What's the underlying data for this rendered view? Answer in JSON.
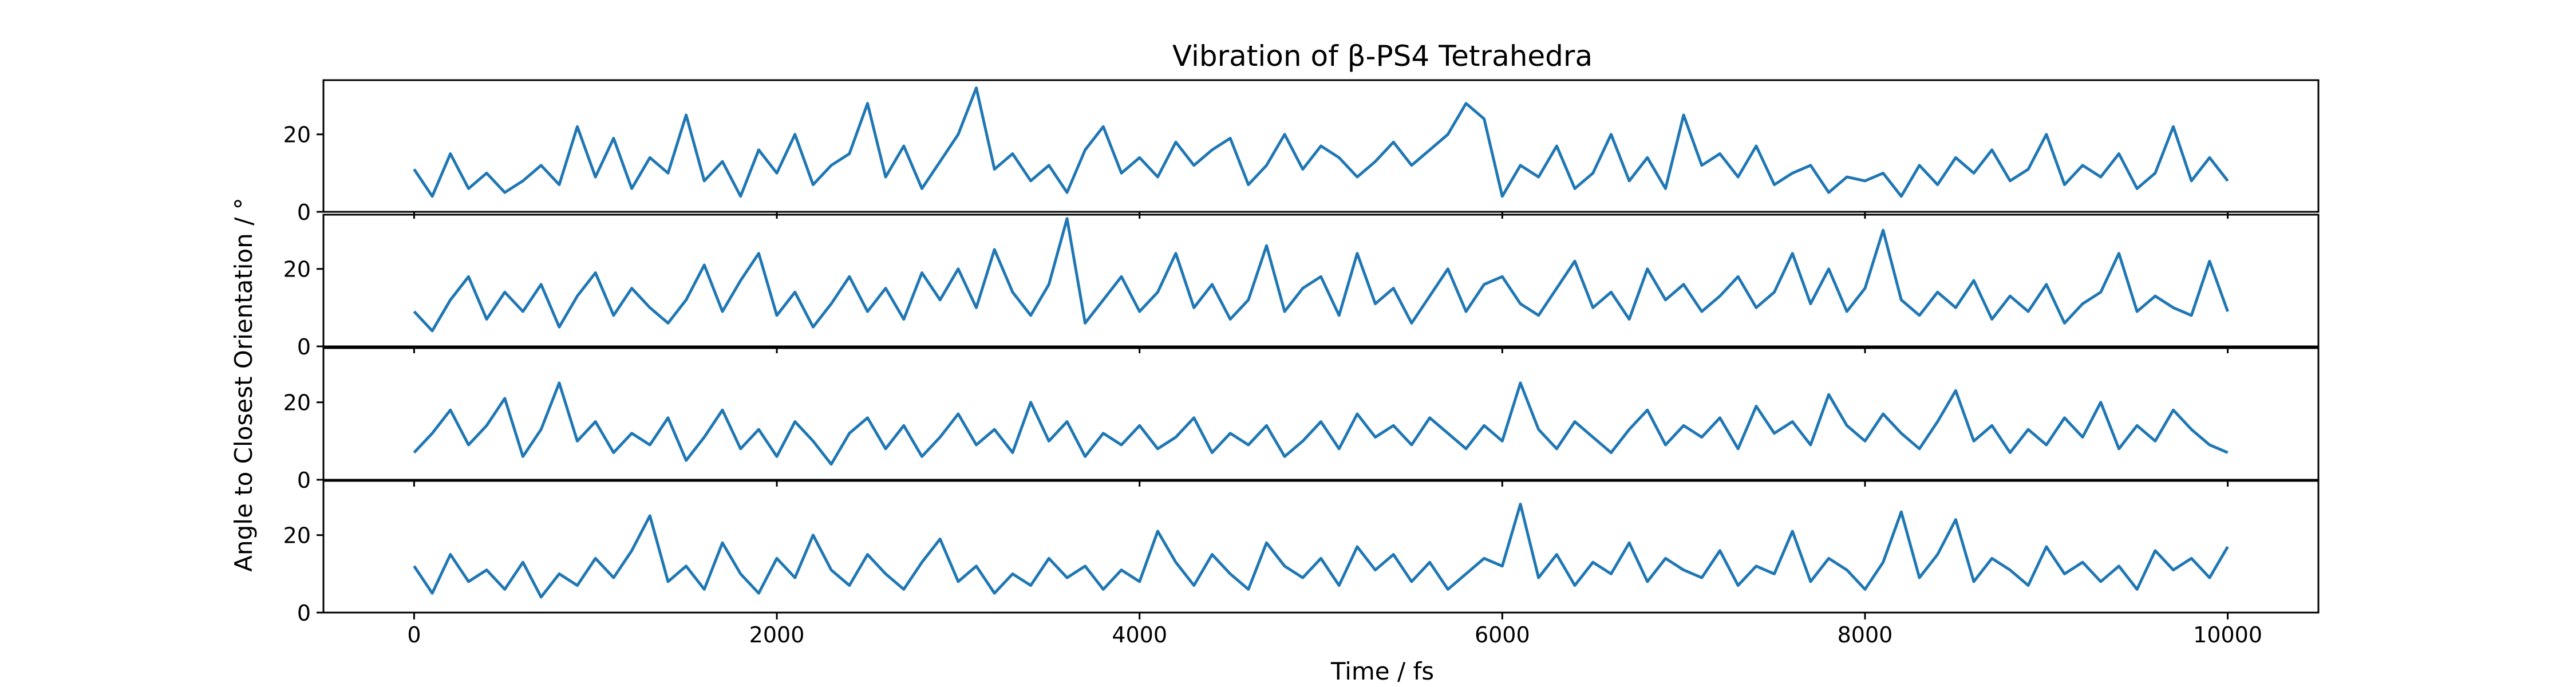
{
  "figure": {
    "title": "Vibration of β-PS4 Tetrahedra",
    "xlabel": "Time / fs",
    "ylabel": "Angle to Closest Orientation / °",
    "line_color": "#1f77b4"
  },
  "chart_data": [
    {
      "type": "line",
      "title": "Vibration of β-PS4 Tetrahedra",
      "xlim": [
        -500,
        10500
      ],
      "ylim": [
        0,
        34
      ],
      "xticks": [
        0,
        2000,
        4000,
        6000,
        8000,
        10000
      ],
      "yticks": [
        0,
        20
      ],
      "grid": false,
      "series": [
        {
          "x": [
            0,
            100,
            200,
            300,
            400,
            500,
            600,
            700,
            800,
            900,
            1000,
            1100,
            1200,
            1300,
            1400,
            1500,
            1600,
            1700,
            1800,
            1900,
            2000,
            2100,
            2200,
            2300,
            2400,
            2500,
            2600,
            2700,
            2800,
            2900,
            3000,
            3100,
            3200,
            3300,
            3400,
            3500,
            3600,
            3700,
            3800,
            3900,
            4000,
            4100,
            4200,
            4300,
            4400,
            4500,
            4600,
            4700,
            4800,
            4900,
            5000,
            5100,
            5200,
            5300,
            5400,
            5500,
            5600,
            5700,
            5800,
            5900,
            6000,
            6100,
            6200,
            6300,
            6400,
            6500,
            6600,
            6700,
            6800,
            6900,
            7000,
            7100,
            7200,
            7300,
            7400,
            7500,
            7600,
            7700,
            7800,
            7900,
            8000,
            8100,
            8200,
            8300,
            8400,
            8500,
            8600,
            8700,
            8800,
            8900,
            9000,
            9100,
            9200,
            9300,
            9400,
            9500,
            9600,
            9700,
            9800,
            9900,
            10000
          ],
          "values": [
            11,
            4,
            15,
            6,
            10,
            5,
            8,
            12,
            7,
            22,
            9,
            19,
            6,
            14,
            10,
            25,
            8,
            13,
            4,
            16,
            10,
            20,
            7,
            12,
            15,
            28,
            9,
            17,
            6,
            13,
            20,
            32,
            11,
            15,
            8,
            12,
            5,
            16,
            22,
            10,
            14,
            9,
            18,
            12,
            16,
            19,
            7,
            12,
            20,
            11,
            17,
            14,
            9,
            13,
            18,
            12,
            16,
            20,
            28,
            24,
            4,
            12,
            9,
            17,
            6,
            10,
            20,
            8,
            14,
            6,
            25,
            12,
            15,
            9,
            17,
            7,
            10,
            12,
            5,
            9,
            8,
            10,
            4,
            12,
            7,
            14,
            10,
            16,
            8,
            11,
            20,
            7,
            12,
            9,
            15,
            6,
            10,
            22,
            8,
            14,
            8
          ]
        }
      ]
    },
    {
      "type": "line",
      "xlim": [
        -500,
        10500
      ],
      "ylim": [
        0,
        34
      ],
      "xticks": [
        0,
        2000,
        4000,
        6000,
        8000,
        10000
      ],
      "yticks": [
        0,
        20
      ],
      "grid": false,
      "series": [
        {
          "x": [
            0,
            100,
            200,
            300,
            400,
            500,
            600,
            700,
            800,
            900,
            1000,
            1100,
            1200,
            1300,
            1400,
            1500,
            1600,
            1700,
            1800,
            1900,
            2000,
            2100,
            2200,
            2300,
            2400,
            2500,
            2600,
            2700,
            2800,
            2900,
            3000,
            3100,
            3200,
            3300,
            3400,
            3500,
            3600,
            3700,
            3800,
            3900,
            4000,
            4100,
            4200,
            4300,
            4400,
            4500,
            4600,
            4700,
            4800,
            4900,
            5000,
            5100,
            5200,
            5300,
            5400,
            5500,
            5600,
            5700,
            5800,
            5900,
            6000,
            6100,
            6200,
            6300,
            6400,
            6500,
            6600,
            6700,
            6800,
            6900,
            7000,
            7100,
            7200,
            7300,
            7400,
            7500,
            7600,
            7700,
            7800,
            7900,
            8000,
            8100,
            8200,
            8300,
            8400,
            8500,
            8600,
            8700,
            8800,
            8900,
            9000,
            9100,
            9200,
            9300,
            9400,
            9500,
            9600,
            9700,
            9800,
            9900,
            10000
          ],
          "values": [
            9,
            4,
            12,
            18,
            7,
            14,
            9,
            16,
            5,
            13,
            19,
            8,
            15,
            10,
            6,
            12,
            21,
            9,
            17,
            24,
            8,
            14,
            5,
            11,
            18,
            9,
            15,
            7,
            19,
            12,
            20,
            10,
            25,
            14,
            8,
            16,
            33,
            6,
            12,
            18,
            9,
            14,
            24,
            10,
            16,
            7,
            12,
            26,
            9,
            15,
            18,
            8,
            24,
            11,
            15,
            6,
            13,
            20,
            9,
            16,
            18,
            11,
            8,
            15,
            22,
            10,
            14,
            7,
            20,
            12,
            16,
            9,
            13,
            18,
            10,
            14,
            24,
            11,
            20,
            9,
            15,
            30,
            12,
            8,
            14,
            10,
            17,
            7,
            13,
            9,
            16,
            6,
            11,
            14,
            24,
            9,
            13,
            10,
            8,
            22,
            9
          ]
        }
      ]
    },
    {
      "type": "line",
      "xlim": [
        -500,
        10500
      ],
      "ylim": [
        0,
        34
      ],
      "xticks": [
        0,
        2000,
        4000,
        6000,
        8000,
        10000
      ],
      "yticks": [
        0,
        20
      ],
      "grid": false,
      "series": [
        {
          "x": [
            0,
            100,
            200,
            300,
            400,
            500,
            600,
            700,
            800,
            900,
            1000,
            1100,
            1200,
            1300,
            1400,
            1500,
            1600,
            1700,
            1800,
            1900,
            2000,
            2100,
            2200,
            2300,
            2400,
            2500,
            2600,
            2700,
            2800,
            2900,
            3000,
            3100,
            3200,
            3300,
            3400,
            3500,
            3600,
            3700,
            3800,
            3900,
            4000,
            4100,
            4200,
            4300,
            4400,
            4500,
            4600,
            4700,
            4800,
            4900,
            5000,
            5100,
            5200,
            5300,
            5400,
            5500,
            5600,
            5700,
            5800,
            5900,
            6000,
            6100,
            6200,
            6300,
            6400,
            6500,
            6600,
            6700,
            6800,
            6900,
            7000,
            7100,
            7200,
            7300,
            7400,
            7500,
            7600,
            7700,
            7800,
            7900,
            8000,
            8100,
            8200,
            8300,
            8400,
            8500,
            8600,
            8700,
            8800,
            8900,
            9000,
            9100,
            9200,
            9300,
            9400,
            9500,
            9600,
            9700,
            9800,
            9900,
            10000
          ],
          "values": [
            7,
            12,
            18,
            9,
            14,
            21,
            6,
            13,
            25,
            10,
            15,
            7,
            12,
            9,
            16,
            5,
            11,
            18,
            8,
            13,
            6,
            15,
            10,
            4,
            12,
            16,
            8,
            14,
            6,
            11,
            17,
            9,
            13,
            7,
            20,
            10,
            15,
            6,
            12,
            9,
            14,
            8,
            11,
            16,
            7,
            12,
            9,
            14,
            6,
            10,
            15,
            8,
            17,
            11,
            14,
            9,
            16,
            12,
            8,
            14,
            10,
            25,
            13,
            8,
            15,
            11,
            7,
            13,
            18,
            9,
            14,
            11,
            16,
            8,
            19,
            12,
            15,
            9,
            22,
            14,
            10,
            17,
            12,
            8,
            15,
            23,
            10,
            14,
            7,
            13,
            9,
            16,
            11,
            20,
            8,
            14,
            10,
            18,
            13,
            9,
            7
          ]
        }
      ]
    },
    {
      "type": "line",
      "xlim": [
        -500,
        10500
      ],
      "ylim": [
        0,
        34
      ],
      "xticks": [
        0,
        2000,
        4000,
        6000,
        8000,
        10000
      ],
      "yticks": [
        0,
        20
      ],
      "grid": false,
      "series": [
        {
          "x": [
            0,
            100,
            200,
            300,
            400,
            500,
            600,
            700,
            800,
            900,
            1000,
            1100,
            1200,
            1300,
            1400,
            1500,
            1600,
            1700,
            1800,
            1900,
            2000,
            2100,
            2200,
            2300,
            2400,
            2500,
            2600,
            2700,
            2800,
            2900,
            3000,
            3100,
            3200,
            3300,
            3400,
            3500,
            3600,
            3700,
            3800,
            3900,
            4000,
            4100,
            4200,
            4300,
            4400,
            4500,
            4600,
            4700,
            4800,
            4900,
            5000,
            5100,
            5200,
            5300,
            5400,
            5500,
            5600,
            5700,
            5800,
            5900,
            6000,
            6100,
            6200,
            6300,
            6400,
            6500,
            6600,
            6700,
            6800,
            6900,
            7000,
            7100,
            7200,
            7300,
            7400,
            7500,
            7600,
            7700,
            7800,
            7900,
            8000,
            8100,
            8200,
            8300,
            8400,
            8500,
            8600,
            8700,
            8800,
            8900,
            9000,
            9100,
            9200,
            9300,
            9400,
            9500,
            9600,
            9700,
            9800,
            9900,
            10000
          ],
          "values": [
            12,
            5,
            15,
            8,
            11,
            6,
            13,
            4,
            10,
            7,
            14,
            9,
            16,
            25,
            8,
            12,
            6,
            18,
            10,
            5,
            14,
            9,
            20,
            11,
            7,
            15,
            10,
            6,
            13,
            19,
            8,
            12,
            5,
            10,
            7,
            14,
            9,
            12,
            6,
            11,
            8,
            21,
            13,
            7,
            15,
            10,
            6,
            18,
            12,
            9,
            14,
            7,
            17,
            11,
            15,
            8,
            13,
            6,
            10,
            14,
            12,
            28,
            9,
            15,
            7,
            13,
            10,
            18,
            8,
            14,
            11,
            9,
            16,
            7,
            12,
            10,
            21,
            8,
            14,
            11,
            6,
            13,
            26,
            9,
            15,
            24,
            8,
            14,
            11,
            7,
            17,
            10,
            13,
            8,
            12,
            6,
            16,
            11,
            14,
            9,
            17
          ]
        }
      ]
    }
  ]
}
